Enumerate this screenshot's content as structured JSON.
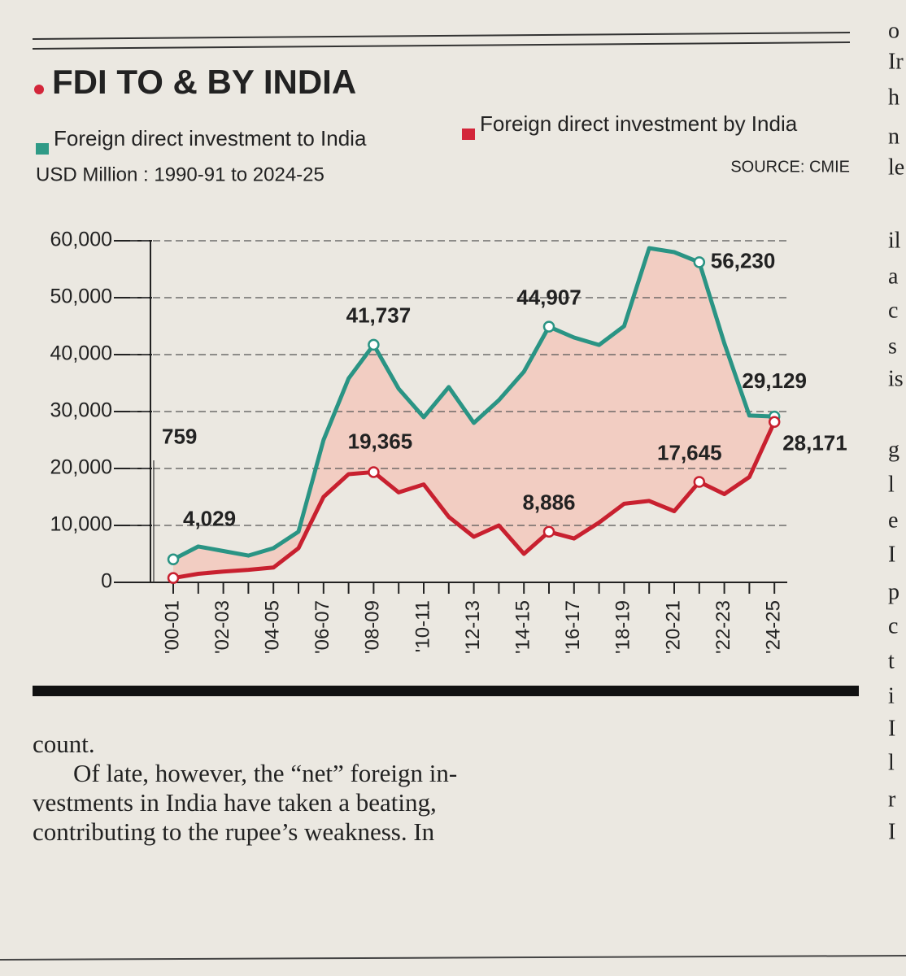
{
  "chart_data": {
    "type": "line",
    "title": "FDI TO & BY INDIA",
    "subtitle": "USD Million : 1990-91 to 2024-25",
    "source": "SOURCE: CMIE",
    "categories": [
      "'00-01",
      null,
      "'02-03",
      null,
      "'04-05",
      null,
      "'06-07",
      null,
      "'08-09",
      null,
      "'10-11",
      null,
      "'12-13",
      null,
      "'14-15",
      null,
      "'16-17",
      null,
      "'18-19",
      null,
      "'20-21",
      null,
      "'22-23",
      null,
      "'24-25"
    ],
    "series": [
      {
        "name": "Foreign direct investment to India",
        "color": "#2a9484",
        "values": [
          4029,
          6300,
          5500,
          4700,
          6000,
          8900,
          25000,
          35800,
          41737,
          34000,
          29000,
          34300,
          28000,
          32000,
          37000,
          44907,
          43000,
          41700,
          45000,
          58700,
          58000,
          56230,
          42000,
          29300,
          29129
        ],
        "value_labels": [
          "4,029",
          null,
          null,
          null,
          null,
          null,
          null,
          null,
          "41,737",
          null,
          null,
          null,
          null,
          null,
          null,
          "44,907",
          null,
          null,
          null,
          null,
          null,
          "56,230",
          null,
          null,
          "29,129"
        ]
      },
      {
        "name": "Foreign direct investment by India",
        "color": "#c8202f",
        "values": [
          759,
          1500,
          1900,
          2200,
          2600,
          6000,
          15000,
          19000,
          19365,
          15800,
          17200,
          11500,
          8000,
          10000,
          5000,
          8886,
          7700,
          10500,
          13800,
          14300,
          12500,
          17645,
          15500,
          18500,
          28171
        ],
        "value_labels": [
          "759",
          null,
          null,
          null,
          null,
          null,
          null,
          null,
          "19,365",
          null,
          null,
          null,
          null,
          null,
          null,
          "8,886",
          null,
          null,
          null,
          null,
          null,
          "17,645",
          null,
          null,
          "28,171"
        ]
      }
    ],
    "ylim": [
      0,
      60000
    ],
    "yticks": [
      0,
      {
        "value": 10000,
        "label": "10,000"
      },
      {
        "value": 20000,
        "label": "20,000"
      },
      {
        "value": 30000,
        "label": "30,000"
      },
      {
        "value": 40000,
        "label": "40,000"
      },
      {
        "value": 50000,
        "label": "50,000"
      },
      {
        "value": 60000,
        "label": "60,000"
      }
    ],
    "grid": true,
    "fill_between": "#f2cdc2"
  },
  "article": {
    "lines": [
      "count.",
      "Of late, however, the “net” foreign in-",
      "vestments in India have taken a beating,",
      "contributing to the rupee’s weakness. In"
    ]
  },
  "side_column": [
    "o",
    "Ir",
    "h",
    "n",
    "le",
    "il",
    "a",
    "c",
    "s",
    "is",
    "g",
    "l",
    "e",
    "I",
    "p",
    "c",
    "t",
    "i",
    "I",
    "l",
    "r",
    "I"
  ]
}
